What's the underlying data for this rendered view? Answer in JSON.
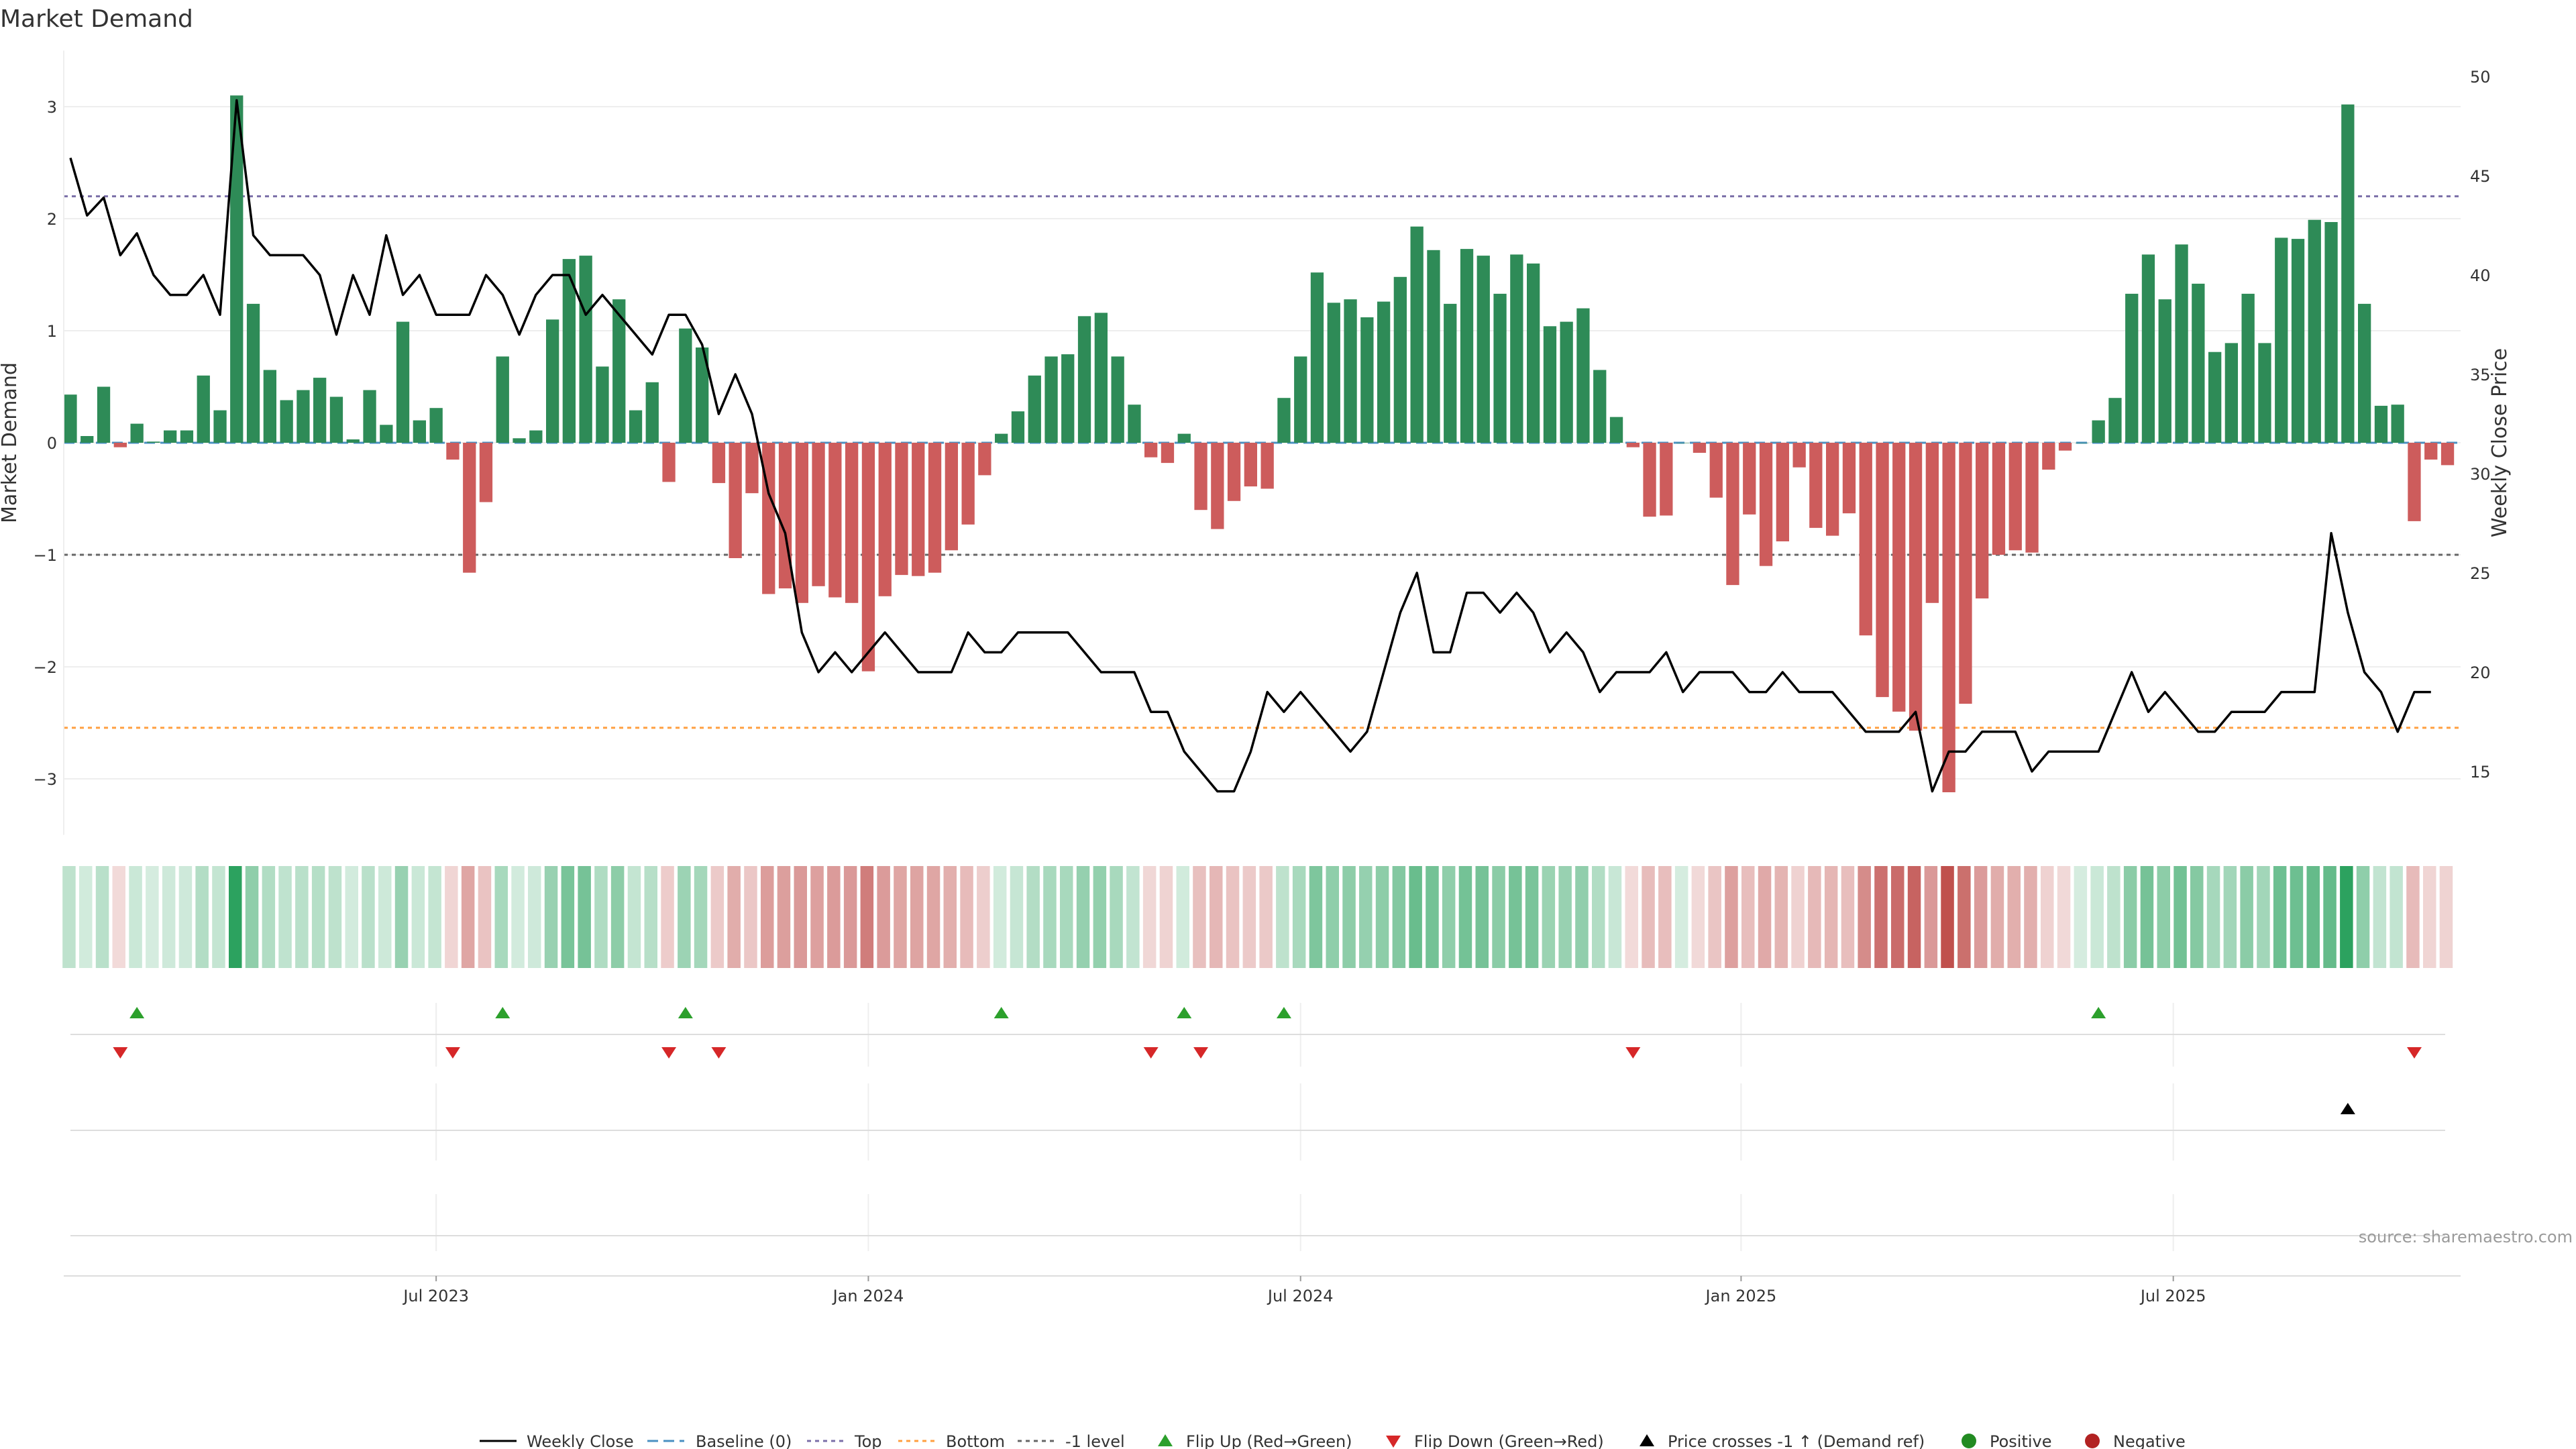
{
  "chart_data": {
    "type": "bar",
    "title": "Market Demand",
    "ylabel": "Market Demand",
    "y2label": "Weekly Close Price",
    "ylim": [
      -3.5,
      3.5
    ],
    "y2lim": [
      12,
      50
    ],
    "yticks": [
      -3,
      -2,
      -1,
      0,
      1,
      2,
      3
    ],
    "y2ticks": [
      15,
      20,
      25,
      30,
      35,
      40,
      45,
      50
    ],
    "ytick_labels": [
      "−3",
      "−2",
      "−1",
      "0",
      "1",
      "2",
      "3"
    ],
    "y2tick_labels": [
      "15",
      "20",
      "25",
      "30",
      "35",
      "40",
      "45",
      "50"
    ],
    "date_ticks": [
      {
        "week": 22,
        "label": "Jul 2023"
      },
      {
        "week": 48,
        "label": "Jan 2024"
      },
      {
        "week": 74,
        "label": "Jul 2024"
      },
      {
        "week": 100.5,
        "label": "Jan 2025"
      },
      {
        "week": 126.5,
        "label": "Jul 2025"
      }
    ],
    "reference_lines": {
      "top": 2.2,
      "minus1": -1.0,
      "bottom_price": 17.2,
      "baseline": 0
    },
    "demand": [
      0.43,
      0.06,
      0.5,
      -0.04,
      0.17,
      0.01,
      0.11,
      0.11,
      0.6,
      0.29,
      3.1,
      1.24,
      0.65,
      0.38,
      0.47,
      0.58,
      0.41,
      0.03,
      0.47,
      0.16,
      1.08,
      0.2,
      0.31,
      -0.15,
      -1.16,
      -0.53,
      0.77,
      0.04,
      0.11,
      1.1,
      1.64,
      1.67,
      0.68,
      1.28,
      0.29,
      0.54,
      -0.35,
      1.02,
      0.85,
      -0.36,
      -1.03,
      -0.45,
      -1.35,
      -1.3,
      -1.43,
      -1.28,
      -1.38,
      -1.43,
      -2.04,
      -1.37,
      -1.18,
      -1.19,
      -1.16,
      -0.96,
      -0.73,
      -0.29,
      0.08,
      0.28,
      0.6,
      0.77,
      0.79,
      1.13,
      1.16,
      0.77,
      0.34,
      -0.13,
      -0.18,
      0.08,
      -0.6,
      -0.77,
      -0.52,
      -0.39,
      -0.41,
      0.4,
      0.77,
      1.52,
      1.25,
      1.28,
      1.12,
      1.26,
      1.48,
      1.93,
      1.72,
      1.24,
      1.73,
      1.67,
      1.33,
      1.68,
      1.6,
      1.04,
      1.08,
      1.2,
      0.65,
      0.23,
      -0.04,
      -0.66,
      -0.65,
      0.0,
      -0.09,
      -0.49,
      -1.27,
      -0.64,
      -1.1,
      -0.88,
      -0.22,
      -0.76,
      -0.83,
      -0.63,
      -1.72,
      -2.27,
      -2.4,
      -2.57,
      -1.43,
      -3.12,
      -2.33,
      -1.39,
      -1.0,
      -0.96,
      -0.98,
      -0.24,
      -0.07,
      0.0,
      0.2,
      0.4,
      1.33,
      1.68,
      1.28,
      1.77,
      1.42,
      0.81,
      0.89,
      1.33,
      0.89,
      1.83,
      1.82,
      1.99,
      1.97,
      3.02,
      1.24,
      0.33,
      0.34,
      -0.7,
      -0.15,
      -0.2
    ],
    "price": [
      45.9,
      43.0,
      43.9,
      41.0,
      42.1,
      40.0,
      39.0,
      39.0,
      40.0,
      38.0,
      48.8,
      42.0,
      41.0,
      41.0,
      41.0,
      40.0,
      37.0,
      40.0,
      38.0,
      42.0,
      39.0,
      40.0,
      38.0,
      38.0,
      38.0,
      40.0,
      39.0,
      37.0,
      39.0,
      40.0,
      40.0,
      38.0,
      39.0,
      38.0,
      37.0,
      36.0,
      38.0,
      38.0,
      36.5,
      33.0,
      35.0,
      33.0,
      29.0,
      27.0,
      22.0,
      20.0,
      21.0,
      20.0,
      21.0,
      22.0,
      21.0,
      20.0,
      20.0,
      20.0,
      22.0,
      21.0,
      21.0,
      22.0,
      22.0,
      22.0,
      22.0,
      21.0,
      20.0,
      20.0,
      20.0,
      18.0,
      18.0,
      16.0,
      15.0,
      14.0,
      14.0,
      16.0,
      19.0,
      18.0,
      19.0,
      18.0,
      17.0,
      16.0,
      17.0,
      20.0,
      23.0,
      25.0,
      21.0,
      21.0,
      24.0,
      24.0,
      23.0,
      24.0,
      23.0,
      21.0,
      22.0,
      21.0,
      19.0,
      20.0,
      20.0,
      20.0,
      21.0,
      19.0,
      20.0,
      20.0,
      20.0,
      19.0,
      19.0,
      20.0,
      19.0,
      19.0,
      19.0,
      18.0,
      17.0,
      17.0,
      17.0,
      18.0,
      14.0,
      16.0,
      16.0,
      17.0,
      17.0,
      17.0,
      15.0,
      16.0,
      16.0,
      16.0,
      16.0,
      18.0,
      20.0,
      18.0,
      19.0,
      18.0,
      17.0,
      17.0,
      18.0,
      18.0,
      18.0,
      19.0,
      19.0,
      19.0,
      27.0,
      23.0,
      20.0,
      19.0,
      17.0,
      19.0,
      19.0
    ],
    "flip_up_weeks": [
      4,
      26,
      37,
      56,
      67,
      73,
      122
    ],
    "flip_down_weeks": [
      3,
      23,
      36,
      39,
      65,
      68,
      94,
      141
    ],
    "demand_ref_weeks": [
      137
    ],
    "legend": [
      "Weekly Close",
      "Baseline (0)",
      "Top",
      "Bottom",
      "-1 level",
      "Flip Up (Red→Green)",
      "Flip Down (Green→Red)",
      "Price crosses -1 ↑ (Demand ref)",
      "Positive",
      "Negative"
    ],
    "source": "source: sharemaestro.com"
  },
  "colors": {
    "positive": "#2e8b57",
    "negative": "#cd5c5c",
    "flip_up": "#2ca02c",
    "flip_down": "#d62728",
    "price": "#000000",
    "top_line": "#7b6fa8",
    "bottom_line": "#ff9f40",
    "minus1_line": "#666666",
    "baseline": "#4a90c2"
  }
}
